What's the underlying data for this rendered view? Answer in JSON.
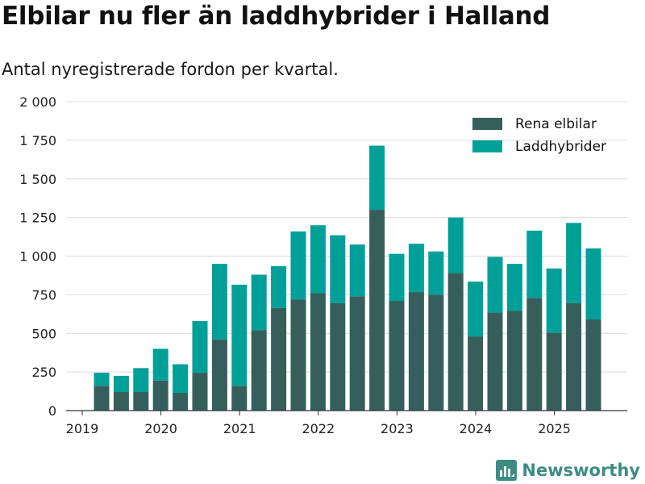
{
  "title": "Elbilar nu fler än laddhybrider i Halland",
  "subtitle": "Antal nyregistrerade fordon per kvartal.",
  "brand": "Newsworthy",
  "colors": {
    "rena_elbilar": "#365f5b",
    "laddhybrider": "#00a098",
    "grid": "#dcdcdc",
    "axis": "#333333",
    "brand": "#3d8c83"
  },
  "chart_data": {
    "type": "bar",
    "stacked": true,
    "categories": [
      "2019 Q2",
      "2019 Q3",
      "2019 Q4",
      "2020 Q1",
      "2020 Q2",
      "2020 Q3",
      "2020 Q4",
      "2021 Q1",
      "2021 Q2",
      "2021 Q3",
      "2021 Q4",
      "2022 Q1",
      "2022 Q2",
      "2022 Q3",
      "2022 Q4",
      "2023 Q1",
      "2023 Q2",
      "2023 Q3",
      "2023 Q4",
      "2024 Q1",
      "2024 Q2",
      "2024 Q3",
      "2024 Q4",
      "2025 Q1",
      "2025 Q2",
      "2025 Q3"
    ],
    "series": [
      {
        "name": "Rena elbilar",
        "values": [
          160,
          120,
          120,
          195,
          115,
          245,
          460,
          160,
          520,
          665,
          720,
          760,
          695,
          740,
          1300,
          710,
          765,
          750,
          890,
          480,
          635,
          645,
          730,
          505,
          695,
          590
        ]
      },
      {
        "name": "Laddhybrider",
        "values": [
          85,
          105,
          155,
          205,
          185,
          335,
          490,
          655,
          360,
          270,
          440,
          440,
          440,
          335,
          415,
          305,
          315,
          280,
          360,
          355,
          360,
          305,
          435,
          415,
          520,
          460
        ]
      }
    ],
    "ylim": [
      0,
      2000
    ],
    "yticks": [
      0,
      250,
      500,
      750,
      1000,
      1250,
      1500,
      1750,
      2000
    ],
    "ytick_labels": [
      "0",
      "250",
      "500",
      "750",
      "1 000",
      "1 250",
      "1 500",
      "1 750",
      "2 000"
    ],
    "xticks": [
      "2019",
      "2020",
      "2021",
      "2022",
      "2023",
      "2024",
      "2025"
    ],
    "xlabel": "",
    "ylabel": "",
    "legend_position": "top-right",
    "grid": true
  }
}
